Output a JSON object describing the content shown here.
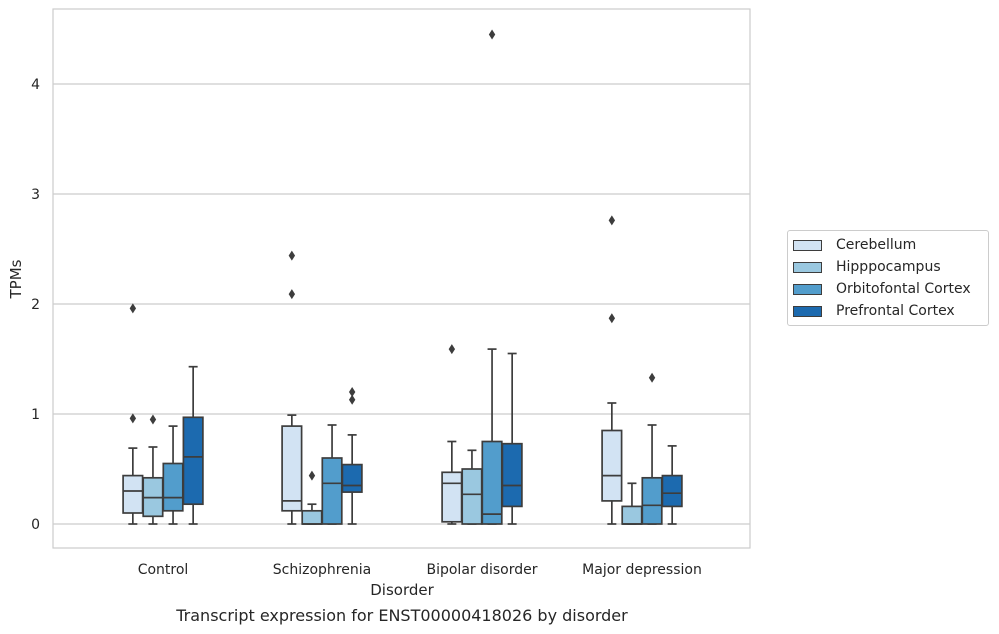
{
  "caption": "Transcript expression for ENST00000418026 by disorder",
  "chart_data": {
    "type": "box",
    "xlabel": "Disorder",
    "ylabel": "TPMs",
    "ylim": [
      -0.2,
      4.6
    ],
    "yticks": [
      0,
      1,
      2,
      3,
      4
    ],
    "grid": true,
    "legend_position": "right",
    "categories": [
      "Control",
      "Schizophrenia",
      "Bipolar disorder",
      "Major depression"
    ],
    "series": [
      {
        "name": "Cerebellum",
        "color": "#d2e3f3",
        "boxes": [
          {
            "whisker_low": 0.0,
            "q1": 0.1,
            "median": 0.3,
            "q3": 0.44,
            "whisker_high": 0.69,
            "outliers": [
              0.96,
              1.96
            ]
          },
          {
            "whisker_low": 0.0,
            "q1": 0.12,
            "median": 0.21,
            "q3": 0.89,
            "whisker_high": 0.99,
            "outliers": [
              2.09,
              2.44
            ]
          },
          {
            "whisker_low": 0.0,
            "q1": 0.02,
            "median": 0.37,
            "q3": 0.47,
            "whisker_high": 0.75,
            "outliers": [
              1.59
            ]
          },
          {
            "whisker_low": 0.0,
            "q1": 0.21,
            "median": 0.44,
            "q3": 0.85,
            "whisker_high": 1.1,
            "outliers": [
              1.87,
              2.76
            ]
          }
        ]
      },
      {
        "name": "Hipppocampus",
        "color": "#9ac8e0",
        "boxes": [
          {
            "whisker_low": 0.0,
            "q1": 0.07,
            "median": 0.24,
            "q3": 0.42,
            "whisker_high": 0.7,
            "outliers": [
              0.95
            ]
          },
          {
            "whisker_low": 0.0,
            "q1": 0.0,
            "median": 0.0,
            "q3": 0.12,
            "whisker_high": 0.18,
            "outliers": [
              0.44
            ]
          },
          {
            "whisker_low": 0.0,
            "q1": 0.0,
            "median": 0.27,
            "q3": 0.5,
            "whisker_high": 0.67,
            "outliers": []
          },
          {
            "whisker_low": 0.0,
            "q1": 0.0,
            "median": 0.0,
            "q3": 0.16,
            "whisker_high": 0.37,
            "outliers": []
          }
        ]
      },
      {
        "name": "Orbitofontal Cortex",
        "color": "#529dcc",
        "boxes": [
          {
            "whisker_low": 0.0,
            "q1": 0.12,
            "median": 0.24,
            "q3": 0.55,
            "whisker_high": 0.89,
            "outliers": []
          },
          {
            "whisker_low": 0.0,
            "q1": 0.0,
            "median": 0.37,
            "q3": 0.6,
            "whisker_high": 0.9,
            "outliers": []
          },
          {
            "whisker_low": 0.0,
            "q1": 0.0,
            "median": 0.09,
            "q3": 0.75,
            "whisker_high": 1.59,
            "outliers": [
              4.45
            ]
          },
          {
            "whisker_low": 0.0,
            "q1": 0.0,
            "median": 0.17,
            "q3": 0.42,
            "whisker_high": 0.9,
            "outliers": [
              1.33
            ]
          }
        ]
      },
      {
        "name": "Prefrontal Cortex",
        "color": "#1c6aaf",
        "boxes": [
          {
            "whisker_low": 0.0,
            "q1": 0.18,
            "median": 0.61,
            "q3": 0.97,
            "whisker_high": 1.43,
            "outliers": []
          },
          {
            "whisker_low": 0.0,
            "q1": 0.29,
            "median": 0.35,
            "q3": 0.54,
            "whisker_high": 0.81,
            "outliers": [
              1.13,
              1.2
            ]
          },
          {
            "whisker_low": 0.0,
            "q1": 0.16,
            "median": 0.35,
            "q3": 0.73,
            "whisker_high": 1.55,
            "outliers": []
          },
          {
            "whisker_low": 0.0,
            "q1": 0.16,
            "median": 0.28,
            "q3": 0.44,
            "whisker_high": 0.71,
            "outliers": []
          }
        ]
      }
    ]
  }
}
